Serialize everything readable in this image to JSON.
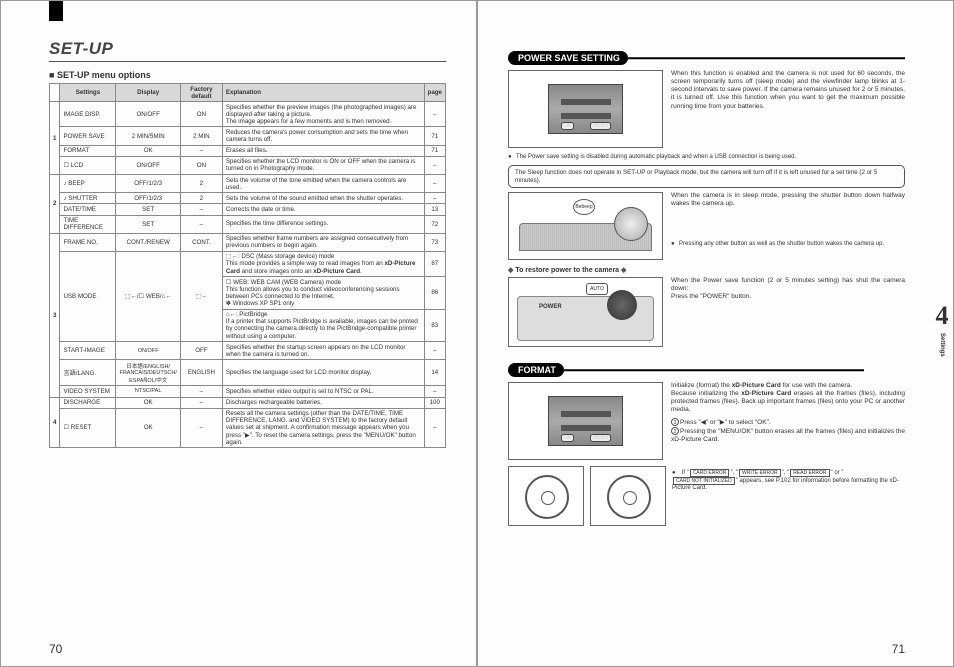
{
  "left": {
    "title": "SET-UP",
    "subhead": "SET-UP menu options",
    "headers": {
      "settings": "Settings",
      "display": "Display",
      "def": "Factory default",
      "exp": "Explanation",
      "page": "page"
    },
    "groups": [
      {
        "num": "1",
        "rows": [
          {
            "s": "IMAGE DISP.",
            "d": "ON/OFF",
            "f": "ON",
            "e": "Specifies whether the preview images (the photographed images) are displayed after taking a picture.\nThe image appears for a few moments and is then removed.",
            "p": "–"
          },
          {
            "s": "POWER SAVE",
            "d": "2 MIN/5MIN",
            "f": "2 MIN",
            "e": "Reduces the camera's power consumption and sets the time when camera turns off.",
            "p": "71"
          },
          {
            "s": "FORMAT",
            "d": "OK",
            "f": "–",
            "e": "Erases all files.",
            "p": "71"
          },
          {
            "s": "☐ LCD",
            "d": "ON/OFF",
            "f": "ON",
            "e": "Specifies whether the LCD monitor is ON or OFF when the camera is turned on in Photography mode.",
            "p": "–"
          }
        ]
      },
      {
        "num": "2",
        "rows": [
          {
            "s": "♪ BEEP",
            "d": "OFF/1/2/3",
            "f": "2",
            "e": "Sets the volume of the tone emitted when the camera controls are used.",
            "p": "–"
          },
          {
            "s": "♪ SHUTTER",
            "d": "OFF/1/2/3",
            "f": "2",
            "e": "Sets the volume of the sound emitted when the shutter operates.",
            "p": "–"
          },
          {
            "s": "DATE/TIME",
            "d": "SET",
            "f": "–",
            "e": "Corrects the date or time.",
            "p": "13"
          },
          {
            "s": "TIME DIFFERENCE",
            "d": "SET",
            "f": "–",
            "e": "Specifies the time difference settings.",
            "p": "72"
          }
        ]
      },
      {
        "num": "3",
        "rows": [
          {
            "s": "FRAME NO.",
            "d": "CONT./RENEW",
            "f": "CONT.",
            "e": "Specifies whether frame numbers are assigned consecutively from previous numbers or begin again.",
            "p": "73"
          },
          {
            "s": "USB MODE",
            "d": "⬚←/☐ WEB/⌂←",
            "f": "⬚←",
            "e": "⬚←: DSC (Mass storage device) mode\nThis mode provides a simple way to read images from an xD-Picture Card and store images onto an xD-Picture Card.",
            "p": "87",
            "multi": true
          }
        ],
        "usb_extra": [
          {
            "e": "☐ WEB: WEB CAM (WEB Camera) mode\nThis function allows you to conduct videoconferencing sessions between PCs connected to the Internet.\n✽ Windows XP SP1 only",
            "p": "86"
          },
          {
            "e": "⌂←: PictBridge\nIf a printer that supports PictBridge is available, images can be printed by connecting the camera directly to the PictBridge-compatible printer without using a computer.",
            "p": "83"
          }
        ],
        "rows2": [
          {
            "s": "START-IMAGE",
            "d": "ON/OFF",
            "f": "OFF",
            "e": "Specifies whether the startup screen appears on the LCD monitor when the camera is turned on.",
            "p": "–"
          },
          {
            "s": "言語/LANG.",
            "d": "日本語/ENGLISH/ FRANCAIS/DEUTSCH/ ESPAÑOL/中文",
            "f": "ENGLISH",
            "e": "Specifies the language used for LCD monitor display.",
            "p": "14"
          },
          {
            "s": "VIDEO SYSTEM",
            "d": "NTSC/PAL",
            "f": "–",
            "e": "Specifies whether video output is set to NTSC or PAL.",
            "p": "–"
          }
        ]
      },
      {
        "num": "4",
        "rows": [
          {
            "s": "DISCHARGE",
            "d": "OK",
            "f": "–",
            "e": "Discharges rechargeable batteries.",
            "p": "100"
          },
          {
            "s": "☐ RESET",
            "d": "OK",
            "f": "–",
            "e": "Resets all the camera settings (other than the DATE/TIME, TIME DIFFERENCE, LANG. and VIDEO SYSTEM) to the factory default values set at shipment. A confirmation message appears when you press \"▶\". To reset the camera settings, press the \"MENU/OK\" button again.",
            "p": "–"
          }
        ]
      }
    ],
    "pagenum": "70"
  },
  "right": {
    "power_title": "POWER SAVE SETTING",
    "power_text": "When this function is enabled and the camera is not used for 60 seconds, the screen temporarily turns off (sleep mode) and the viewfinder lamp blinks at 1-second intervals to save power. If the camera remains unused for 2 or 5 minutes, it is turned off. Use this function when you want to get the maximum possible running time from your batteries.",
    "power_note": "The Power save setting is disabled during automatic playback and when a USB connection is being used.",
    "sleep_box": "The Sleep function does not operate in SET-UP or Playback mode, but the camera will turn off if it is left unused for a set time (2 or 5 minutes).",
    "sleep_text": "When the camera is in sleep mode, pressing the shutter button down halfway wakes the camera up.",
    "beep": "Bebeep",
    "sleep_note": "Pressing any other button as well as the shutter button wakes the camera up.",
    "restore_title": "To restore power to the camera",
    "restore_text": "When the Power save function (2 or 5 minutes setting) has shut the camera down:\nPress the \"POWER\" button.",
    "power_label": "POWER",
    "mode_label": "AUTO",
    "format_title": "FORMAT",
    "format_text": "Initialize (format) the xD-Picture Card for use with the camera.\nBecause initializing the xD-Picture Card erases all the frames (files), including protected frames (files). Back up important frames (files) onto your PC or another media.",
    "format_step1": "Press \"◀\" or \"▶\" to select \"OK\".",
    "format_step2": "Pressing the \"MENU/OK\" button erases all the frames (files) and initializes the xD-Picture Card.",
    "err": {
      "e1": "CARD ERROR",
      "e2": "WRITE ERROR",
      "e3": "READ ERROR",
      "e4": "CARD NOT INITIALIZED"
    },
    "format_note": "appears, see P.102 for information before formatting the xD-Picture Card.",
    "side": "Settings",
    "pagenum": "71"
  }
}
